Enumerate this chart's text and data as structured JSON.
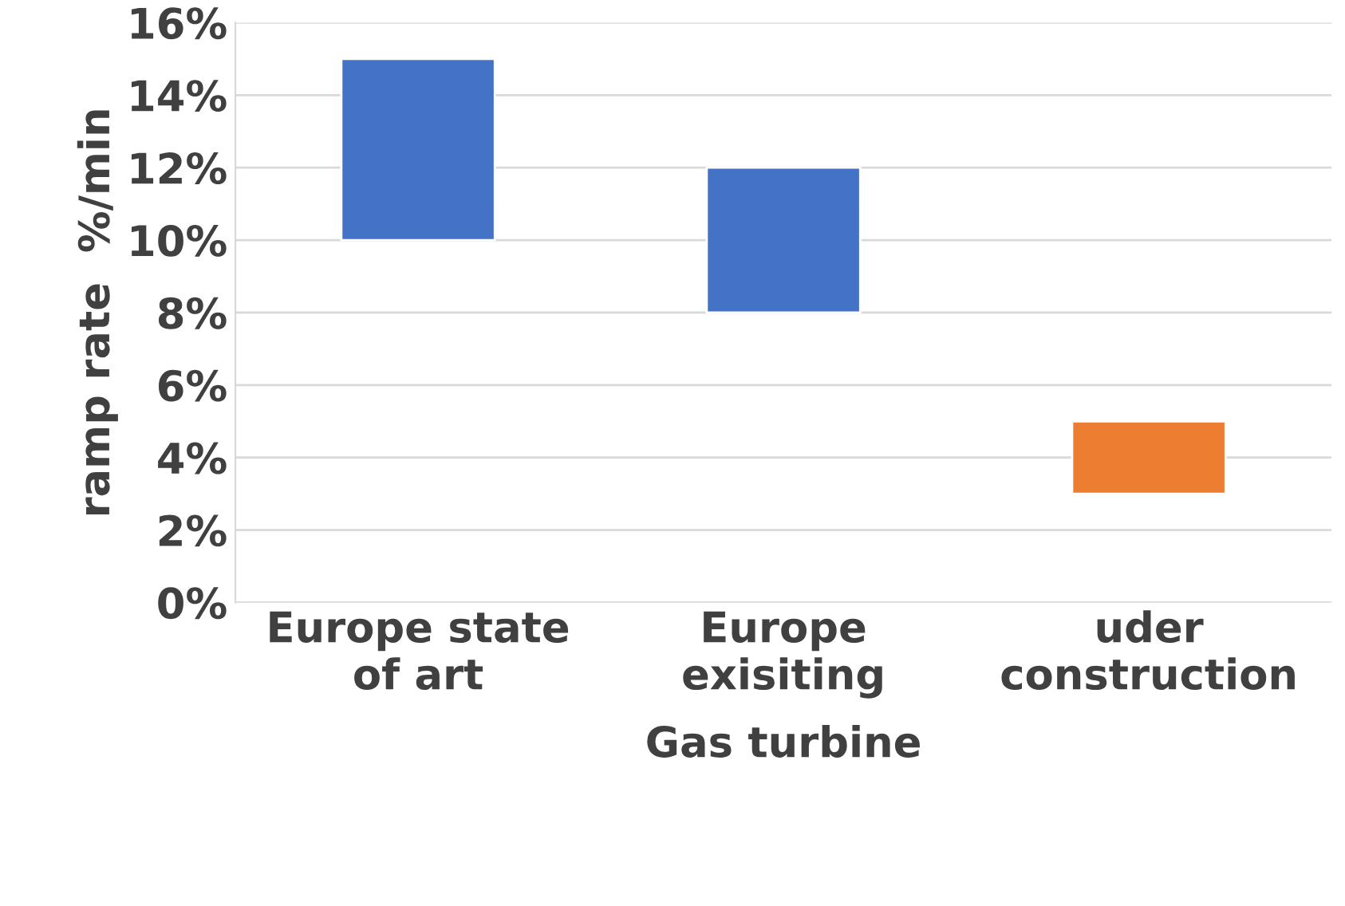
{
  "chart_data": {
    "type": "bar",
    "categories": [
      "Europe state\nof art",
      "Europe\nexisiting",
      "uder\nconstruction"
    ],
    "base": [
      10,
      8,
      3
    ],
    "values": [
      5,
      4,
      2
    ],
    "colors": [
      "#4472c4",
      "#4472c4",
      "#ed7d31"
    ],
    "xlabel": "Gas turbine",
    "ylabel": "ramp rate  %/min",
    "ylim": [
      0,
      16
    ],
    "yticks": [
      {
        "value": 0,
        "label": "0%"
      },
      {
        "value": 2,
        "label": "2%"
      },
      {
        "value": 4,
        "label": "4%"
      },
      {
        "value": 6,
        "label": "6%"
      },
      {
        "value": 8,
        "label": "8%"
      },
      {
        "value": 10,
        "label": "10%"
      },
      {
        "value": 12,
        "label": "12%"
      },
      {
        "value": 14,
        "label": "14%"
      },
      {
        "value": 16,
        "label": "16%"
      }
    ],
    "grid": "y"
  }
}
